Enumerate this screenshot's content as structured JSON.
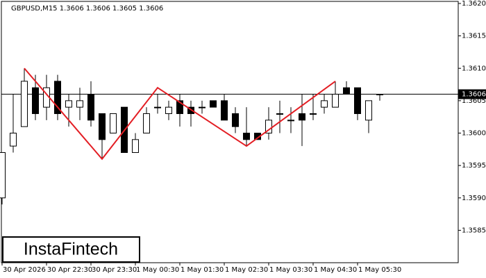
{
  "chart_data": {
    "type": "candlestick",
    "title": "GBPUSD,M15  1.3606 1.3606 1.3605 1.3606",
    "logo": "InstaFintech",
    "categories": [
      "30 Apr 2026",
      null,
      null,
      null,
      "30 Apr 22:30",
      null,
      null,
      null,
      "30 Apr 23:30",
      null,
      null,
      null,
      "1 May 00:30",
      null,
      null,
      null,
      "1 May 01:30",
      null,
      null,
      null,
      "1 May 02:30",
      null,
      null,
      null,
      "1 May 03:30",
      null,
      null,
      null,
      "1 May 04:30",
      null,
      null,
      null,
      "1 May 05:30",
      null,
      null
    ],
    "open": [
      1.359,
      1.3598,
      1.3601,
      1.3607,
      1.3604,
      1.3608,
      1.3604,
      1.3604,
      1.3606,
      1.3603,
      1.36,
      1.3604,
      1.3597,
      1.36,
      1.3604,
      1.3603,
      1.3605,
      1.3604,
      1.3604,
      1.3605,
      1.3605,
      1.3603,
      1.36,
      1.36,
      1.36,
      1.3603,
      1.3602,
      1.3603,
      1.3603,
      1.3604,
      1.3604,
      1.3607,
      1.3607,
      1.3602,
      1.3606
    ],
    "high": [
      1.3597,
      1.3606,
      1.361,
      1.3609,
      1.3609,
      1.3609,
      1.3606,
      1.3607,
      1.3608,
      1.3603,
      1.3603,
      1.3604,
      1.36,
      1.3604,
      1.3606,
      1.3605,
      1.3606,
      1.3605,
      1.3605,
      1.3605,
      1.3606,
      1.3604,
      1.3604,
      1.36,
      1.3604,
      1.3605,
      1.3604,
      1.3606,
      1.3606,
      1.3606,
      1.3608,
      1.3608,
      1.3607,
      1.3605,
      1.3606
    ],
    "low": [
      1.3589,
      1.3597,
      1.3601,
      1.3602,
      1.3602,
      1.3602,
      1.3601,
      1.3602,
      1.3601,
      1.3596,
      1.36,
      1.3597,
      1.3597,
      1.36,
      1.3603,
      1.3602,
      1.3601,
      1.3601,
      1.3603,
      1.3604,
      1.3602,
      1.36,
      1.3598,
      1.3599,
      1.3599,
      1.36,
      1.36,
      1.3598,
      1.3602,
      1.3603,
      1.3604,
      1.3606,
      1.3602,
      1.36,
      1.3605
    ],
    "close": [
      1.3597,
      1.36,
      1.3608,
      1.3603,
      1.3607,
      1.3603,
      1.3605,
      1.3605,
      1.3602,
      1.3599,
      1.3603,
      1.3597,
      1.3599,
      1.3603,
      1.3604,
      1.3604,
      1.3603,
      1.3603,
      1.3604,
      1.3604,
      1.3602,
      1.3601,
      1.3599,
      1.3599,
      1.3602,
      1.3603,
      1.3602,
      1.3602,
      1.3603,
      1.3605,
      1.3606,
      1.3606,
      1.3603,
      1.3605,
      1.3606
    ],
    "pattern": {
      "color": "#e31e24",
      "x": [
        2,
        9,
        14,
        22,
        30
      ],
      "values": [
        1.361,
        1.3596,
        1.3607,
        1.3598,
        1.3608
      ]
    },
    "last_price": 1.3606,
    "ylim": [
      1.358,
      1.362
    ],
    "yticks": [
      {
        "value": 1.362,
        "label": "1.3620"
      },
      1.3615,
      {
        "value": 1.361,
        "label": "1.3610"
      },
      1.3605,
      {
        "value": 1.36,
        "label": "1.3600"
      },
      1.3595,
      {
        "value": 1.359,
        "label": "1.3590"
      },
      1.3585
    ]
  }
}
